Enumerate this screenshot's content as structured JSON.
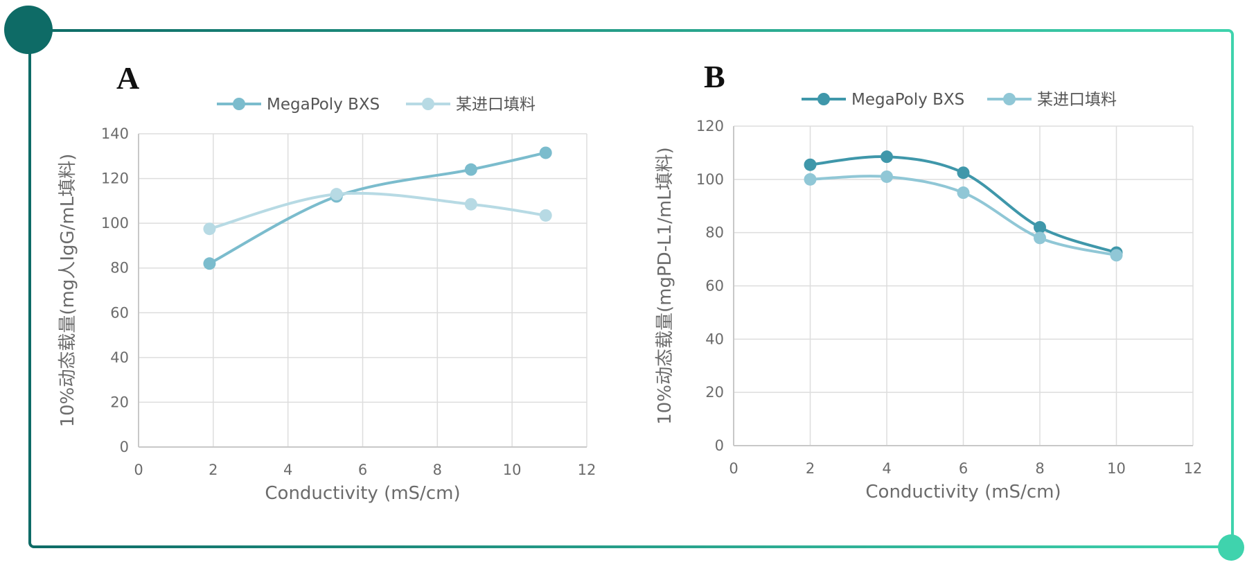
{
  "frame": {
    "colors": {
      "dark": "#0e6b66",
      "light": "#3fd3ad"
    }
  },
  "chart_data": [
    {
      "type": "line",
      "panel_label": "A",
      "xlabel": "Conductivity (mS/cm)",
      "ylabel": "10%动态载量(mg人IgG/mL填料)",
      "xlim": [
        0,
        12
      ],
      "ylim": [
        0,
        140
      ],
      "xticks": [
        0,
        2,
        4,
        6,
        8,
        10,
        12
      ],
      "yticks": [
        0,
        20,
        40,
        60,
        80,
        100,
        120,
        140
      ],
      "grid": true,
      "legend_position": "top-center",
      "series": [
        {
          "name": "MegaPoly BXS",
          "color": "#7bbccd",
          "x": [
            1.9,
            5.3,
            8.9,
            10.9
          ],
          "y": [
            82,
            112,
            124,
            131.5
          ]
        },
        {
          "name": "某进口填料",
          "color": "#b7dae4",
          "x": [
            1.9,
            5.3,
            8.9,
            10.9
          ],
          "y": [
            97.5,
            113,
            108.5,
            103.5
          ]
        }
      ]
    },
    {
      "type": "line",
      "panel_label": "B",
      "xlabel": "Conductivity (mS/cm)",
      "ylabel": "10%动态载量(mgPD-L1/mL填料)",
      "xlim": [
        0,
        12
      ],
      "ylim": [
        0,
        120
      ],
      "xticks": [
        0,
        2,
        4,
        6,
        8,
        10,
        12
      ],
      "yticks": [
        0,
        20,
        40,
        60,
        80,
        100,
        120
      ],
      "grid": true,
      "legend_position": "top-center",
      "series": [
        {
          "name": "MegaPoly BXS",
          "color": "#3f97aa",
          "x": [
            2,
            4,
            6,
            8,
            10
          ],
          "y": [
            105.5,
            108.5,
            102.5,
            82,
            72.5
          ]
        },
        {
          "name": "某进口填料",
          "color": "#90c7d6",
          "x": [
            2,
            4,
            6,
            8,
            10
          ],
          "y": [
            100,
            101,
            95,
            78,
            71.5
          ]
        }
      ]
    }
  ]
}
